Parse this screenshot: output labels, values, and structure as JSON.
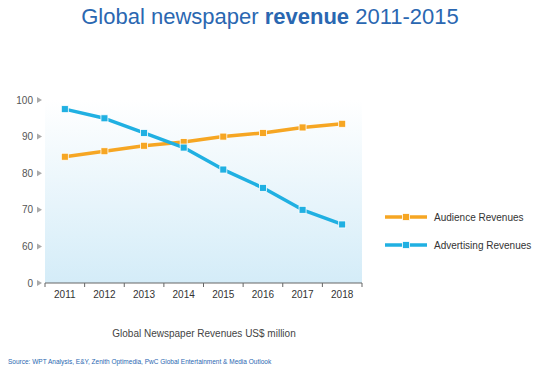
{
  "chart_data": {
    "type": "line",
    "title": "Global newspaper revenue 2011-2015",
    "title_emphasis": "revenue",
    "x_label": "Global Newspaper Revenues US$ million",
    "source": "Source: WPT Analysis, E&Y, Zenith Optimedia, PwC Global Entertainment & Media Outlook",
    "categories": [
      "2011",
      "2012",
      "2013",
      "2014",
      "2015",
      "2016",
      "2017",
      "2018"
    ],
    "series": [
      {
        "name": "Audience Revenues",
        "color": "#f6a623",
        "values": [
          84.5,
          86,
          87.5,
          88.5,
          90,
          91,
          92.5,
          93.5
        ]
      },
      {
        "name": "Advertising Revenues",
        "color": "#20b0e2",
        "values": [
          97.5,
          95,
          91,
          87,
          81,
          76,
          70,
          66
        ]
      }
    ],
    "ylim": [
      0,
      100
    ],
    "yticks": [
      0,
      60,
      70,
      80,
      90,
      100
    ],
    "grid": false,
    "legend": "right",
    "marker": "square",
    "line_style": "solid"
  }
}
